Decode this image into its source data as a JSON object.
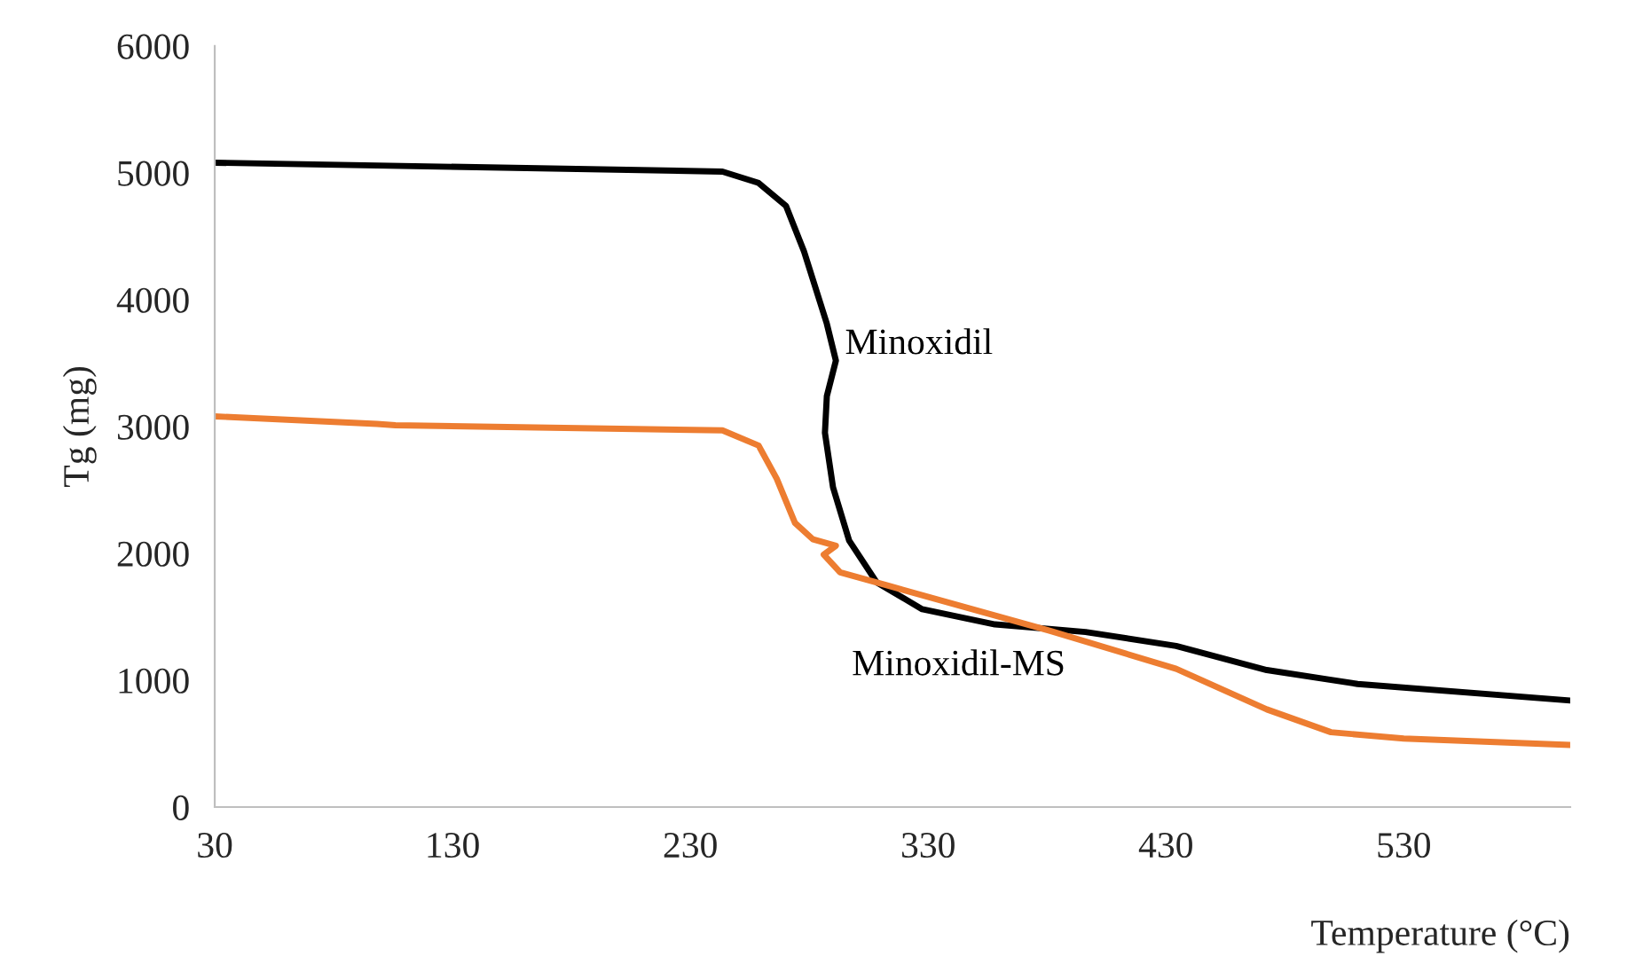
{
  "chart_data": {
    "type": "line",
    "xlabel": "Temperature (°C)",
    "ylabel": "Tg (mg)",
    "xlim": [
      30,
      600
    ],
    "xticks": [
      30,
      130,
      230,
      330,
      430,
      530
    ],
    "ylim": [
      0,
      6000
    ],
    "yticks": [
      0,
      1000,
      2000,
      3000,
      4000,
      5000,
      6000
    ],
    "grid": false,
    "legend": false,
    "marker": "none",
    "line_style": "solid",
    "series": [
      {
        "name": "Minoxidil",
        "color": "#000000",
        "x": [
          30,
          243.5,
          258.7,
          270.2,
          277.8,
          287.4,
          291.2,
          287.4,
          286.6,
          290,
          296.8,
          308.4,
          327.5,
          358.1,
          396.2,
          434.3,
          472.4,
          510.6,
          600
        ],
        "values": [
          5080,
          5010,
          4920,
          4740,
          4380,
          3810,
          3520,
          3240,
          2950,
          2520,
          2100,
          1770,
          1560,
          1440,
          1380,
          1270,
          1080,
          970,
          840
        ]
      },
      {
        "name": "Minoxidil-MS",
        "color": "#ed7d31",
        "x": [
          30,
          98.2,
          106,
          243.5,
          258.7,
          266.3,
          274,
          281.6,
          291.2,
          286.1,
          293,
          312.2,
          381,
          434.3,
          472.4,
          499.4,
          530,
          600
        ],
        "values": [
          3080,
          3020,
          3010,
          2970,
          2850,
          2590,
          2240,
          2110,
          2060,
          1990,
          1850,
          1750,
          1390,
          1090,
          770,
          590,
          540,
          490
        ]
      }
    ]
  }
}
